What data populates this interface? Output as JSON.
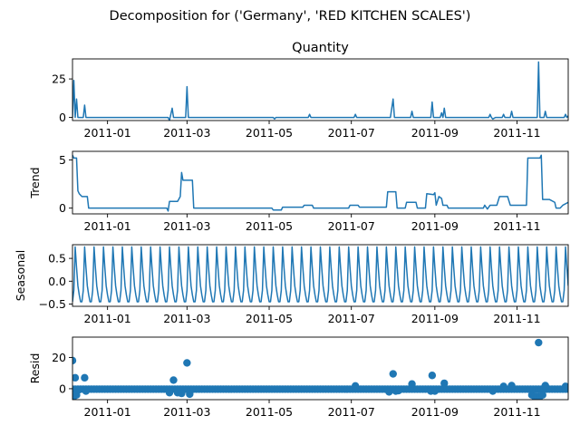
{
  "chart_data": {
    "type": "line",
    "suptitle": "Decomposition for ('Germany', 'RED KITCHEN SCALES')",
    "x_range": [
      "2010-12-06",
      "2011-12-09"
    ],
    "x_ticks": [
      "2011-01-01",
      "2011-03-01",
      "2011-05-01",
      "2011-07-01",
      "2011-09-01",
      "2011-11-01"
    ],
    "x_tick_labels": [
      "2011-01",
      "2011-03",
      "2011-05",
      "2011-07",
      "2011-09",
      "2011-11"
    ],
    "line_color": "#1f77b4",
    "panels": [
      {
        "id": "observed",
        "title": "Quantity",
        "ylabel": "",
        "kind": "line",
        "ylim": [
          -2,
          38
        ],
        "yticks": [
          0,
          25
        ],
        "points": [
          [
            "2010-12-06",
            0
          ],
          [
            "2010-12-07",
            24
          ],
          [
            "2010-12-08",
            0
          ],
          [
            "2010-12-09",
            12
          ],
          [
            "2010-12-10",
            0
          ],
          [
            "2010-12-14",
            0
          ],
          [
            "2010-12-15",
            8
          ],
          [
            "2010-12-16",
            0
          ],
          [
            "2011-02-15",
            0
          ],
          [
            "2011-02-16",
            -2
          ],
          [
            "2011-02-18",
            6
          ],
          [
            "2011-02-19",
            0
          ],
          [
            "2011-02-28",
            0
          ],
          [
            "2011-03-01",
            20
          ],
          [
            "2011-03-02",
            0
          ],
          [
            "2011-05-04",
            0
          ],
          [
            "2011-05-05",
            -1
          ],
          [
            "2011-05-06",
            0
          ],
          [
            "2011-05-30",
            0
          ],
          [
            "2011-05-31",
            2
          ],
          [
            "2011-06-01",
            0
          ],
          [
            "2011-07-03",
            0
          ],
          [
            "2011-07-04",
            2
          ],
          [
            "2011-07-05",
            0
          ],
          [
            "2011-07-30",
            0
          ],
          [
            "2011-08-01",
            12
          ],
          [
            "2011-08-02",
            0
          ],
          [
            "2011-08-14",
            0
          ],
          [
            "2011-08-15",
            4
          ],
          [
            "2011-08-16",
            0
          ],
          [
            "2011-08-29",
            0
          ],
          [
            "2011-08-30",
            10
          ],
          [
            "2011-08-31",
            0
          ],
          [
            "2011-09-05",
            0
          ],
          [
            "2011-09-06",
            3
          ],
          [
            "2011-09-07",
            0
          ],
          [
            "2011-09-08",
            6
          ],
          [
            "2011-09-09",
            0
          ],
          [
            "2011-10-11",
            0
          ],
          [
            "2011-10-12",
            2
          ],
          [
            "2011-10-13",
            0
          ],
          [
            "2011-10-14",
            -1
          ],
          [
            "2011-10-16",
            0
          ],
          [
            "2011-10-21",
            0
          ],
          [
            "2011-10-22",
            2
          ],
          [
            "2011-10-23",
            0
          ],
          [
            "2011-10-27",
            0
          ],
          [
            "2011-10-28",
            4
          ],
          [
            "2011-10-29",
            0
          ],
          [
            "2011-11-16",
            0
          ],
          [
            "2011-11-17",
            36
          ],
          [
            "2011-11-18",
            0
          ],
          [
            "2011-11-21",
            0
          ],
          [
            "2011-11-22",
            4
          ],
          [
            "2011-11-23",
            0
          ],
          [
            "2011-12-06",
            0
          ],
          [
            "2011-12-07",
            2
          ],
          [
            "2011-12-08",
            0
          ],
          [
            "2011-12-09",
            1
          ]
        ]
      },
      {
        "id": "trend",
        "title": "",
        "ylabel": "Trend",
        "kind": "line",
        "ylim": [
          -0.6,
          5.9
        ],
        "yticks": [
          0,
          5
        ],
        "points": [
          [
            "2010-12-06",
            5.5
          ],
          [
            "2010-12-07",
            5.2
          ],
          [
            "2010-12-09",
            5.2
          ],
          [
            "2010-12-10",
            1.8
          ],
          [
            "2010-12-11",
            1.5
          ],
          [
            "2010-12-13",
            1.2
          ],
          [
            "2010-12-17",
            1.2
          ],
          [
            "2010-12-18",
            0
          ],
          [
            "2011-02-14",
            0
          ],
          [
            "2011-02-15",
            -0.3
          ],
          [
            "2011-02-16",
            0.7
          ],
          [
            "2011-02-22",
            0.7
          ],
          [
            "2011-02-24",
            1.2
          ],
          [
            "2011-02-25",
            3.7
          ],
          [
            "2011-02-26",
            2.9
          ],
          [
            "2011-03-05",
            2.9
          ],
          [
            "2011-03-06",
            0
          ],
          [
            "2011-05-03",
            0
          ],
          [
            "2011-05-04",
            -0.2
          ],
          [
            "2011-05-10",
            -0.2
          ],
          [
            "2011-05-11",
            0.1
          ],
          [
            "2011-05-26",
            0.1
          ],
          [
            "2011-05-27",
            0.3
          ],
          [
            "2011-06-02",
            0.3
          ],
          [
            "2011-06-03",
            0
          ],
          [
            "2011-06-29",
            0
          ],
          [
            "2011-06-30",
            0.3
          ],
          [
            "2011-07-06",
            0.3
          ],
          [
            "2011-07-07",
            0.1
          ],
          [
            "2011-07-27",
            0.1
          ],
          [
            "2011-07-28",
            1.7
          ],
          [
            "2011-08-03",
            1.7
          ],
          [
            "2011-08-04",
            0
          ],
          [
            "2011-08-10",
            0
          ],
          [
            "2011-08-11",
            0.6
          ],
          [
            "2011-08-18",
            0.6
          ],
          [
            "2011-08-19",
            0
          ],
          [
            "2011-08-25",
            0
          ],
          [
            "2011-08-26",
            1.5
          ],
          [
            "2011-08-31",
            1.4
          ],
          [
            "2011-09-01",
            1.6
          ],
          [
            "2011-09-02",
            0.3
          ],
          [
            "2011-09-04",
            1.2
          ],
          [
            "2011-09-06",
            1.0
          ],
          [
            "2011-09-07",
            0.3
          ],
          [
            "2011-09-10",
            0.3
          ],
          [
            "2011-09-11",
            0
          ],
          [
            "2011-10-07",
            0
          ],
          [
            "2011-10-08",
            0.3
          ],
          [
            "2011-10-10",
            -0.1
          ],
          [
            "2011-10-12",
            0.3
          ],
          [
            "2011-10-15",
            0.3
          ],
          [
            "2011-10-17",
            0.3
          ],
          [
            "2011-10-19",
            1.2
          ],
          [
            "2011-10-25",
            1.2
          ],
          [
            "2011-10-27",
            0.3
          ],
          [
            "2011-11-06",
            0.3
          ],
          [
            "2011-11-08",
            0.3
          ],
          [
            "2011-11-09",
            5.2
          ],
          [
            "2011-11-18",
            5.2
          ],
          [
            "2011-11-19",
            5.5
          ],
          [
            "2011-11-20",
            0.9
          ],
          [
            "2011-11-25",
            0.9
          ],
          [
            "2011-11-29",
            0.6
          ],
          [
            "2011-11-30",
            0
          ],
          [
            "2011-12-03",
            0
          ],
          [
            "2011-12-05",
            0.3
          ],
          [
            "2011-12-09",
            0.6
          ]
        ]
      },
      {
        "id": "seasonal",
        "title": "",
        "ylabel": "Seasonal",
        "kind": "periodic",
        "ylim": [
          -0.55,
          0.8
        ],
        "yticks": [
          -0.5,
          0,
          0.5
        ],
        "ytick_labels": [
          "−0.5",
          "0.0",
          "0.5"
        ],
        "period_days": 7,
        "pattern": [
          -0.45,
          -0.2,
          0.75,
          0.3,
          -0.1,
          -0.3,
          -0.45
        ]
      },
      {
        "id": "resid",
        "title": "",
        "ylabel": "Resid",
        "kind": "scatter",
        "ylim": [
          -7,
          33
        ],
        "yticks": [
          0,
          20
        ],
        "baseline": {
          "start": "2010-12-06",
          "end": "2011-12-09",
          "step_days": 2,
          "value": -0.3
        },
        "points": [
          [
            "2010-12-06",
            18
          ],
          [
            "2010-12-07",
            -5
          ],
          [
            "2010-12-08",
            7
          ],
          [
            "2010-12-09",
            -4
          ],
          [
            "2010-12-10",
            -1
          ],
          [
            "2010-12-15",
            7
          ],
          [
            "2010-12-16",
            -1.5
          ],
          [
            "2011-02-16",
            -2.5
          ],
          [
            "2011-02-19",
            5.5
          ],
          [
            "2011-02-22",
            -2.5
          ],
          [
            "2011-02-25",
            -3
          ],
          [
            "2011-03-01",
            16.5
          ],
          [
            "2011-03-03",
            -3.5
          ],
          [
            "2011-07-04",
            1.8
          ],
          [
            "2011-07-29",
            -2
          ],
          [
            "2011-08-01",
            9.5
          ],
          [
            "2011-08-03",
            -1.5
          ],
          [
            "2011-08-05",
            -1.2
          ],
          [
            "2011-08-15",
            3
          ],
          [
            "2011-08-29",
            -1.5
          ],
          [
            "2011-08-30",
            8.5
          ],
          [
            "2011-09-01",
            -1.5
          ],
          [
            "2011-09-08",
            3.5
          ],
          [
            "2011-10-14",
            -1.5
          ],
          [
            "2011-10-22",
            1.5
          ],
          [
            "2011-10-28",
            2
          ],
          [
            "2011-11-12",
            -4
          ],
          [
            "2011-11-14",
            -5
          ],
          [
            "2011-11-16",
            -5
          ],
          [
            "2011-11-17",
            29.5
          ],
          [
            "2011-11-18",
            -5
          ],
          [
            "2011-11-20",
            -4
          ],
          [
            "2011-11-22",
            2
          ],
          [
            "2011-12-07",
            1.5
          ]
        ]
      }
    ]
  }
}
